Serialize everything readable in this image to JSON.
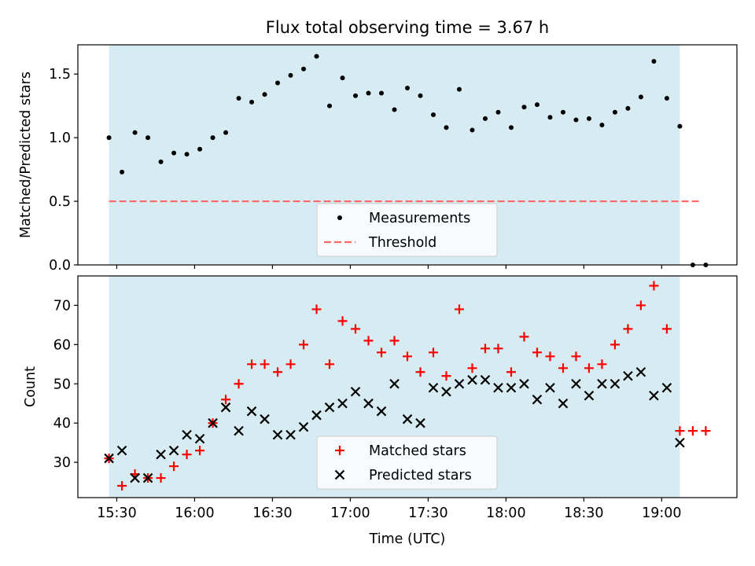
{
  "title": "Flux total observing time = 3.67 h",
  "colors": {
    "band": "#add8e6",
    "measurements": "#000000",
    "threshold": "#ff6666",
    "matched": "#ff0000",
    "predicted": "#000000"
  },
  "chart_data": [
    {
      "type": "scatter",
      "ylabel": "Matched/Predicted stars",
      "ylim": [
        0,
        1.73
      ],
      "y_ticks": [
        0.0,
        0.5,
        1.0,
        1.5
      ],
      "y_tick_labels": [
        "0.0",
        "0.5",
        "1.0",
        "1.5"
      ],
      "shaded_band_x": [
        "15:27",
        "19:07"
      ],
      "legend": {
        "placement": "lower center",
        "entries": [
          "Measurements",
          "Threshold"
        ]
      },
      "series": [
        {
          "name": "Measurements",
          "marker": "dot",
          "x": [
            "15:27",
            "15:32",
            "15:37",
            "15:42",
            "15:47",
            "15:52",
            "15:57",
            "16:02",
            "16:07",
            "16:12",
            "16:17",
            "16:22",
            "16:27",
            "16:32",
            "16:37",
            "16:42",
            "16:47",
            "16:52",
            "16:57",
            "17:02",
            "17:07",
            "17:12",
            "17:17",
            "17:22",
            "17:27",
            "17:32",
            "17:37",
            "17:42",
            "17:47",
            "17:52",
            "17:57",
            "18:02",
            "18:07",
            "18:12",
            "18:17",
            "18:22",
            "18:27",
            "18:32",
            "18:37",
            "18:42",
            "18:47",
            "18:52",
            "18:57",
            "19:02",
            "19:07",
            "19:12",
            "19:17"
          ],
          "y": [
            1.0,
            0.73,
            1.04,
            1.0,
            0.81,
            0.88,
            0.87,
            0.91,
            1.0,
            1.04,
            1.31,
            1.28,
            1.34,
            1.43,
            1.49,
            1.54,
            1.64,
            1.25,
            1.47,
            1.33,
            1.35,
            1.35,
            1.22,
            1.39,
            1.33,
            1.18,
            1.08,
            1.38,
            1.06,
            1.15,
            1.2,
            1.08,
            1.24,
            1.26,
            1.16,
            1.2,
            1.14,
            1.15,
            1.1,
            1.2,
            1.23,
            1.32,
            1.6,
            1.31,
            1.09,
            0.0,
            0.0
          ]
        },
        {
          "name": "Threshold",
          "line": "dashed",
          "x": [
            "15:27",
            "19:15"
          ],
          "y": [
            0.5,
            0.5
          ]
        }
      ]
    },
    {
      "type": "scatter",
      "ylabel": "Count",
      "xlabel": "Time (UTC)",
      "ylim": [
        21,
        77.5
      ],
      "y_ticks": [
        30,
        40,
        50,
        60,
        70
      ],
      "y_tick_labels": [
        "30",
        "40",
        "50",
        "60",
        "70"
      ],
      "x_ticks": [
        "15:30",
        "16:00",
        "16:30",
        "17:00",
        "17:30",
        "18:00",
        "18:30",
        "19:00"
      ],
      "x_tick_labels": [
        "15:30",
        "16:00",
        "16:30",
        "17:00",
        "17:30",
        "18:00",
        "18:30",
        "19:00"
      ],
      "xlim": [
        "15:15",
        "19:29"
      ],
      "shaded_band_x": [
        "15:27",
        "19:07"
      ],
      "legend": {
        "placement": "lower center",
        "entries": [
          "Matched stars",
          "Predicted stars"
        ]
      },
      "series": [
        {
          "name": "Matched stars",
          "marker": "plus",
          "x": [
            "15:27",
            "15:32",
            "15:37",
            "15:42",
            "15:47",
            "15:52",
            "15:57",
            "16:02",
            "16:07",
            "16:12",
            "16:17",
            "16:22",
            "16:27",
            "16:32",
            "16:37",
            "16:42",
            "16:47",
            "16:52",
            "16:57",
            "17:02",
            "17:07",
            "17:12",
            "17:17",
            "17:22",
            "17:27",
            "17:32",
            "17:37",
            "17:42",
            "17:47",
            "17:52",
            "17:57",
            "18:02",
            "18:07",
            "18:12",
            "18:17",
            "18:22",
            "18:27",
            "18:32",
            "18:37",
            "18:42",
            "18:47",
            "18:52",
            "18:57",
            "19:02",
            "19:07",
            "19:12",
            "19:17"
          ],
          "y": [
            31,
            24,
            27,
            26,
            26,
            29,
            32,
            33,
            40,
            46,
            50,
            55,
            55,
            53,
            55,
            60,
            69,
            55,
            66,
            64,
            61,
            58,
            61,
            57,
            53,
            58,
            52,
            69,
            54,
            59,
            59,
            53,
            62,
            58,
            57,
            54,
            57,
            54,
            55,
            60,
            64,
            70,
            75,
            64,
            38,
            38,
            38
          ]
        },
        {
          "name": "Predicted stars",
          "marker": "x",
          "x": [
            "15:27",
            "15:32",
            "15:37",
            "15:42",
            "15:47",
            "15:52",
            "15:57",
            "16:02",
            "16:07",
            "16:12",
            "16:17",
            "16:22",
            "16:27",
            "16:32",
            "16:37",
            "16:42",
            "16:47",
            "16:52",
            "16:57",
            "17:02",
            "17:07",
            "17:12",
            "17:17",
            "17:22",
            "17:27",
            "17:32",
            "17:37",
            "17:42",
            "17:47",
            "17:52",
            "17:57",
            "18:02",
            "18:07",
            "18:12",
            "18:17",
            "18:22",
            "18:27",
            "18:32",
            "18:37",
            "18:42",
            "18:47",
            "18:52",
            "18:57",
            "19:02",
            "19:07"
          ],
          "y": [
            31,
            33,
            26,
            26,
            32,
            33,
            37,
            36,
            40,
            44,
            38,
            43,
            41,
            37,
            37,
            39,
            42,
            44,
            45,
            48,
            45,
            43,
            50,
            41,
            40,
            49,
            48,
            50,
            51,
            51,
            49,
            49,
            50,
            46,
            49,
            45,
            50,
            47,
            50,
            50,
            52,
            53,
            47,
            49,
            35
          ]
        }
      ]
    }
  ]
}
